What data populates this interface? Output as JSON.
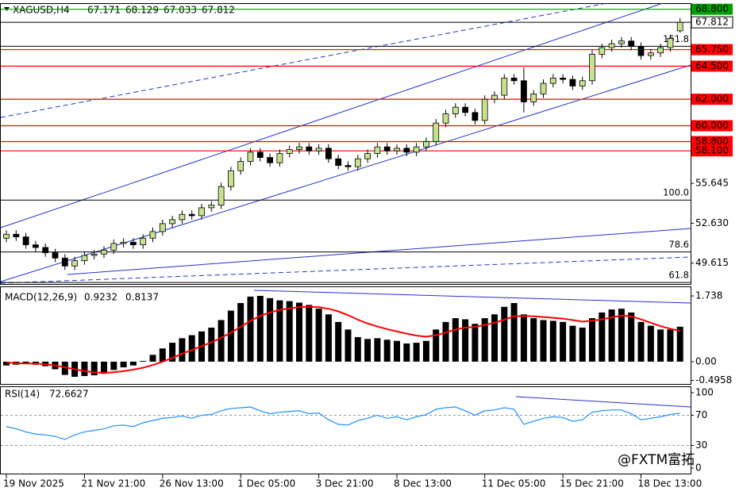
{
  "chart_data": {
    "type": "candlestick",
    "symbol": "XAGUSD,H4",
    "watermark": "@FXTM富拓",
    "up_color": "#c5e38f",
    "down_color": "#000000",
    "categories": [
      "19 Nov 2025",
      null,
      null,
      null,
      null,
      null,
      null,
      null,
      "21 Nov 21:00",
      null,
      null,
      null,
      null,
      null,
      null,
      null,
      "26 Nov 13:00",
      null,
      null,
      null,
      null,
      null,
      null,
      null,
      "1 Dec 05:00",
      null,
      null,
      null,
      null,
      null,
      null,
      null,
      "3 Dec 21:00",
      null,
      null,
      null,
      null,
      null,
      null,
      null,
      "8 Dec 13:00",
      null,
      null,
      null,
      null,
      null,
      null,
      null,
      null,
      "11 Dec 05:00",
      null,
      null,
      null,
      null,
      null,
      null,
      null,
      "15 Dec 21:00",
      null,
      null,
      null,
      null,
      null,
      null,
      null,
      "18 Dec 13:00",
      null,
      null,
      null,
      null
    ],
    "open": [
      51.5,
      51.8,
      51.6,
      51.0,
      50.8,
      50.4,
      50.0,
      49.4,
      49.8,
      50.2,
      50.3,
      50.6,
      51.1,
      51.2,
      51.0,
      51.5,
      52.0,
      52.6,
      52.9,
      53.3,
      53.2,
      53.8,
      54.0,
      55.4,
      56.6,
      57.3,
      58.0,
      57.6,
      57.2,
      57.9,
      58.2,
      58.4,
      58.1,
      58.3,
      57.5,
      57.0,
      56.9,
      57.5,
      57.9,
      58.4,
      58.1,
      58.3,
      58.0,
      58.4,
      58.8,
      60.2,
      60.9,
      61.4,
      61.0,
      60.4,
      62.0,
      62.3,
      63.6,
      63.4,
      61.8,
      62.4,
      63.2,
      63.6,
      63.5,
      63.0,
      63.4,
      65.4,
      65.9,
      66.2,
      66.4,
      66.0,
      65.3,
      65.5,
      65.9,
      67.171
    ],
    "high": [
      52.1,
      52.1,
      51.9,
      51.3,
      51.1,
      50.7,
      50.3,
      50.1,
      50.5,
      50.6,
      50.9,
      51.4,
      51.5,
      51.5,
      51.8,
      52.3,
      52.9,
      53.2,
      53.6,
      53.6,
      54.1,
      54.3,
      55.7,
      56.9,
      57.6,
      58.3,
      58.3,
      57.9,
      58.2,
      58.5,
      58.7,
      58.7,
      58.6,
      58.6,
      57.8,
      57.3,
      57.8,
      58.2,
      58.7,
      58.7,
      58.6,
      58.6,
      58.7,
      59.1,
      60.5,
      61.2,
      61.7,
      61.7,
      61.3,
      62.3,
      62.6,
      63.9,
      63.9,
      64.4,
      62.7,
      63.5,
      63.9,
      63.9,
      63.8,
      63.7,
      65.7,
      66.2,
      66.5,
      66.7,
      66.7,
      66.3,
      65.8,
      66.2,
      66.9,
      68.129
    ],
    "low": [
      51.2,
      51.3,
      50.7,
      50.5,
      50.1,
      49.7,
      49.1,
      49.1,
      49.5,
      49.9,
      50.0,
      50.3,
      50.8,
      50.7,
      50.7,
      51.2,
      51.7,
      52.3,
      52.6,
      52.9,
      52.9,
      53.5,
      53.7,
      55.1,
      56.3,
      57.0,
      57.3,
      56.9,
      56.9,
      57.6,
      57.9,
      57.8,
      57.8,
      57.2,
      56.7,
      56.6,
      56.6,
      57.2,
      57.6,
      57.8,
      57.8,
      57.7,
      57.7,
      58.1,
      58.5,
      59.9,
      60.6,
      60.7,
      60.1,
      60.1,
      61.7,
      62.0,
      63.1,
      61.0,
      61.5,
      62.1,
      62.9,
      63.2,
      62.7,
      62.7,
      63.1,
      65.1,
      65.6,
      65.9,
      65.7,
      65.0,
      65.0,
      65.2,
      65.6,
      67.033
    ],
    "close": [
      51.8,
      51.6,
      51.0,
      50.8,
      50.4,
      50.0,
      49.4,
      49.8,
      50.2,
      50.3,
      50.6,
      51.1,
      51.2,
      51.0,
      51.5,
      52.0,
      52.6,
      52.9,
      53.3,
      53.2,
      53.8,
      54.0,
      55.4,
      56.6,
      57.3,
      58.0,
      57.6,
      57.2,
      57.9,
      58.2,
      58.4,
      58.1,
      58.3,
      57.5,
      57.0,
      56.9,
      57.5,
      57.9,
      58.4,
      58.1,
      58.3,
      58.0,
      58.4,
      58.8,
      60.2,
      60.9,
      61.4,
      61.0,
      60.4,
      62.0,
      62.3,
      63.6,
      63.4,
      61.8,
      62.4,
      63.2,
      63.6,
      63.5,
      63.0,
      63.4,
      65.4,
      65.9,
      66.2,
      66.4,
      66.0,
      65.3,
      65.5,
      65.9,
      66.6,
      67.812
    ],
    "ylim": [
      48.1,
      69.2
    ],
    "yticks": [
      55.645,
      {
        "value": 52.63,
        "label": "52.630"
      },
      49.615
    ],
    "levels": [
      {
        "value": 68.8,
        "label": "68.800",
        "color": "#00a000"
      },
      {
        "value": 65.75,
        "label": "65.750",
        "color": "#ff0000"
      },
      {
        "value": 64.5,
        "label": "64.500",
        "color": "#ff0000"
      },
      {
        "value": 62.0,
        "label": "62.000",
        "color": "#ff0000"
      },
      {
        "value": 60.0,
        "label": "60.000",
        "color": "#ff0000"
      },
      {
        "value": 58.8,
        "label": "58.800",
        "color": "#ff0000"
      },
      {
        "value": 58.1,
        "label": "58.100",
        "color": "#ff0000"
      }
    ],
    "fibonacci": [
      {
        "label": "161.8",
        "price": 66.0
      },
      {
        "label": "100.0",
        "price": 54.38
      },
      {
        "label": "78.6",
        "price": 50.46
      },
      {
        "label": "61.8",
        "price": 48.15
      }
    ],
    "macd": {
      "title": "MACD(12,26,9)",
      "color": "#000000",
      "signal_color": "#ff0000",
      "values": [
        -0.1,
        -0.08,
        -0.05,
        -0.08,
        -0.12,
        -0.2,
        -0.35,
        -0.4,
        -0.38,
        -0.36,
        -0.32,
        -0.22,
        -0.15,
        -0.1,
        0.02,
        0.18,
        0.35,
        0.5,
        0.62,
        0.7,
        0.8,
        0.9,
        1.1,
        1.35,
        1.55,
        1.72,
        1.74,
        1.68,
        1.62,
        1.6,
        1.56,
        1.5,
        1.4,
        1.25,
        1.05,
        0.85,
        0.65,
        0.6,
        0.62,
        0.58,
        0.55,
        0.48,
        0.5,
        0.55,
        0.85,
        1.05,
        1.15,
        1.12,
        1.0,
        1.15,
        1.25,
        1.45,
        1.55,
        1.25,
        1.15,
        1.1,
        1.08,
        1.05,
        0.95,
        0.9,
        1.15,
        1.3,
        1.38,
        1.4,
        1.3,
        1.05,
        0.95,
        0.85,
        0.85,
        0.9232
      ],
      "signal": [
        -0.02,
        -0.04,
        -0.05,
        -0.05,
        -0.07,
        -0.1,
        -0.15,
        -0.2,
        -0.25,
        -0.28,
        -0.3,
        -0.28,
        -0.25,
        -0.21,
        -0.16,
        -0.09,
        0.0,
        0.1,
        0.21,
        0.31,
        0.41,
        0.51,
        0.63,
        0.77,
        0.92,
        1.08,
        1.21,
        1.3,
        1.37,
        1.41,
        1.44,
        1.45,
        1.44,
        1.4,
        1.33,
        1.23,
        1.11,
        1.01,
        0.93,
        0.86,
        0.8,
        0.74,
        0.69,
        0.66,
        0.7,
        0.77,
        0.85,
        0.9,
        0.92,
        0.97,
        1.03,
        1.11,
        1.2,
        1.21,
        1.2,
        1.18,
        1.16,
        1.14,
        1.1,
        1.06,
        1.08,
        1.12,
        1.17,
        1.22,
        1.2,
        1.12,
        1.03,
        0.94,
        0.87,
        0.8137
      ],
      "ylim": [
        -0.61,
        1.97
      ],
      "yticks": [
        1.738,
        {
          "value": 0,
          "label": "0.00"
        },
        -0.4958
      ]
    },
    "rsi": {
      "title": "RSI(14)",
      "color": "#1e90ff",
      "values": [
        55,
        52,
        48,
        45,
        44,
        42,
        38,
        44,
        48,
        50,
        52,
        56,
        57,
        55,
        60,
        63,
        66,
        67,
        69,
        66,
        70,
        71,
        76,
        79,
        80,
        81,
        76,
        72,
        74,
        75,
        76,
        72,
        73,
        64,
        58,
        57,
        63,
        66,
        70,
        66,
        68,
        64,
        68,
        71,
        78,
        80,
        81,
        76,
        70,
        76,
        77,
        80,
        78,
        58,
        62,
        66,
        68,
        67,
        62,
        64,
        74,
        76,
        77,
        77,
        72,
        64,
        66,
        68,
        71,
        72.6627
      ],
      "ylim": [
        -7.3,
        107.3
      ],
      "yticks": [
        100,
        70,
        30,
        0
      ],
      "dashed_levels": [
        70,
        30
      ]
    }
  }
}
